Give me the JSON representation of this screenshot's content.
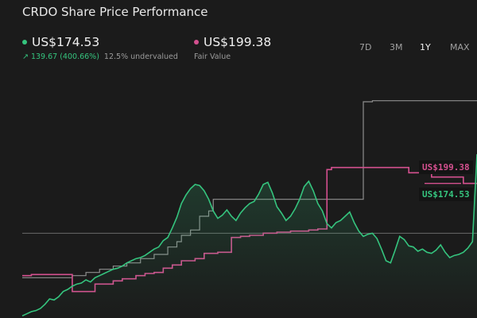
{
  "header": {
    "title": "CRDO Share Price Performance"
  },
  "price": {
    "value": "US$174.53",
    "change": "139.67 (400.66%)",
    "note": "12.5% undervalued",
    "color": "#35c47e"
  },
  "fair_value": {
    "value": "US$199.38",
    "label": "Fair Value",
    "color": "#d4508f"
  },
  "tabs": [
    {
      "label": "7D",
      "active": false
    },
    {
      "label": "3M",
      "active": false
    },
    {
      "label": "1Y",
      "active": true
    },
    {
      "label": "MAX",
      "active": false
    }
  ],
  "chart_data": {
    "type": "line",
    "ylim": [
      20,
      260
    ],
    "x_range": [
      0,
      100
    ],
    "grid": false,
    "reference_line": 100,
    "series": [
      {
        "name": "US$174.53",
        "color": "#35c47e",
        "x": [
          0,
          1,
          2,
          3,
          4,
          5,
          6,
          7,
          8,
          9,
          10,
          11,
          12,
          13,
          14,
          15,
          16,
          17,
          18,
          19,
          20,
          21,
          22,
          23,
          24,
          25,
          26,
          27,
          28,
          29,
          30,
          31,
          32,
          33,
          34,
          35,
          36,
          37,
          38,
          39,
          40,
          41,
          42,
          43,
          44,
          45,
          46,
          47,
          48,
          49,
          50,
          51,
          52,
          53,
          54,
          55,
          56,
          57,
          58,
          59,
          60,
          61,
          62,
          63,
          64,
          65,
          66,
          67,
          68,
          69,
          70,
          71,
          72,
          73,
          74,
          75,
          76,
          77,
          78,
          79,
          80,
          81,
          82,
          83,
          84,
          85,
          86,
          87,
          88,
          89,
          90,
          91,
          92,
          93,
          94,
          95,
          96,
          97,
          98,
          99,
          100
        ],
        "y": [
          22,
          24,
          26,
          27,
          29,
          33,
          38,
          37,
          40,
          45,
          47,
          50,
          52,
          53,
          56,
          54,
          58,
          60,
          62,
          64,
          66,
          67,
          69,
          72,
          74,
          76,
          77,
          79,
          82,
          85,
          87,
          93,
          96,
          105,
          115,
          128,
          136,
          142,
          146,
          145,
          140,
          132,
          121,
          114,
          117,
          122,
          116,
          112,
          119,
          124,
          128,
          130,
          137,
          146,
          148,
          138,
          125,
          119,
          112,
          116,
          123,
          132,
          144,
          149,
          140,
          128,
          121,
          109,
          105,
          110,
          112,
          116,
          120,
          110,
          102,
          97,
          99,
          100,
          95,
          85,
          74,
          72,
          84,
          97,
          94,
          88,
          87,
          83,
          85,
          82,
          81,
          84,
          89,
          82,
          77,
          79,
          80,
          82,
          86,
          92,
          174.53
        ]
      },
      {
        "name": "US$199.38",
        "color": "#d4508f",
        "x": [
          0,
          2,
          4,
          11,
          16,
          20,
          22,
          25,
          27,
          29,
          31,
          33,
          35,
          38,
          40,
          43,
          46,
          48,
          50,
          53,
          56,
          59,
          63,
          65,
          67,
          68,
          85,
          90,
          97
        ],
        "y": [
          60,
          61,
          61,
          45,
          52,
          55,
          57,
          60,
          62,
          63,
          67,
          70,
          74,
          76,
          81,
          82,
          96,
          97,
          98,
          100,
          101,
          102,
          103,
          104,
          160,
          162,
          157,
          153,
          147
        ]
      },
      {
        "name": "",
        "color": "#8e8e8e",
        "x": [
          0,
          11,
          14,
          17,
          20,
          23,
          26,
          29,
          32,
          34,
          35,
          37,
          39,
          41,
          42,
          73,
          75,
          77,
          100
        ],
        "y": [
          58,
          60,
          63,
          66,
          69,
          72,
          76,
          80,
          87,
          92,
          98,
          103,
          116,
          121,
          132,
          132,
          224,
          225,
          225
        ]
      }
    ],
    "labels": [
      {
        "text": "US$199.38",
        "color": "#d4508f",
        "y": 162
      },
      {
        "text": "US$174.53",
        "color": "#35c47e",
        "y": 136
      }
    ]
  }
}
